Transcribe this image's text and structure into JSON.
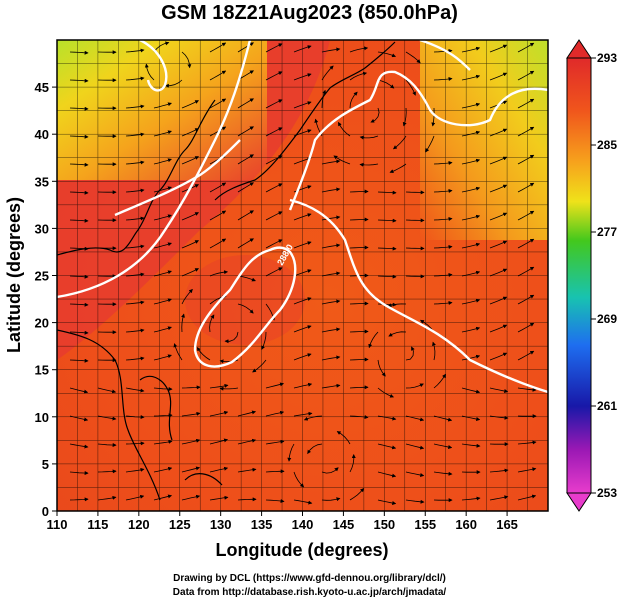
{
  "title": "GSM 18Z21Aug2023 (850.0hPa)",
  "xlabel": "Longitude (degrees)",
  "ylabel": "Latitude  (degrees)",
  "x_ticks": [
    "110",
    "115",
    "120",
    "125",
    "130",
    "135",
    "140",
    "145",
    "150",
    "155",
    "160",
    "165"
  ],
  "y_ticks": [
    "0",
    "5",
    "10",
    "15",
    "20",
    "25",
    "30",
    "35",
    "40",
    "45"
  ],
  "colorbar": {
    "ticks": [
      "293",
      "285",
      "277",
      "269",
      "261",
      "253"
    ],
    "colors": [
      "#d4201e",
      "#ee5a1a",
      "#f7a21c",
      "#f4e41a",
      "#43c81d",
      "#15c0b4",
      "#1e6cf0",
      "#1a1aa8",
      "#9a18b4",
      "#e238c8"
    ]
  },
  "map": {
    "lon_range": [
      110,
      170
    ],
    "lat_range": [
      0,
      50
    ],
    "contour_label": "288.0"
  },
  "credits": {
    "line1": "Drawing by DCL (https://www.gfd-dennou.org/library/dcl/)",
    "line2": "Data from http://database.rish.kyoto-u.ac.jp/arch/jmadata/"
  }
}
